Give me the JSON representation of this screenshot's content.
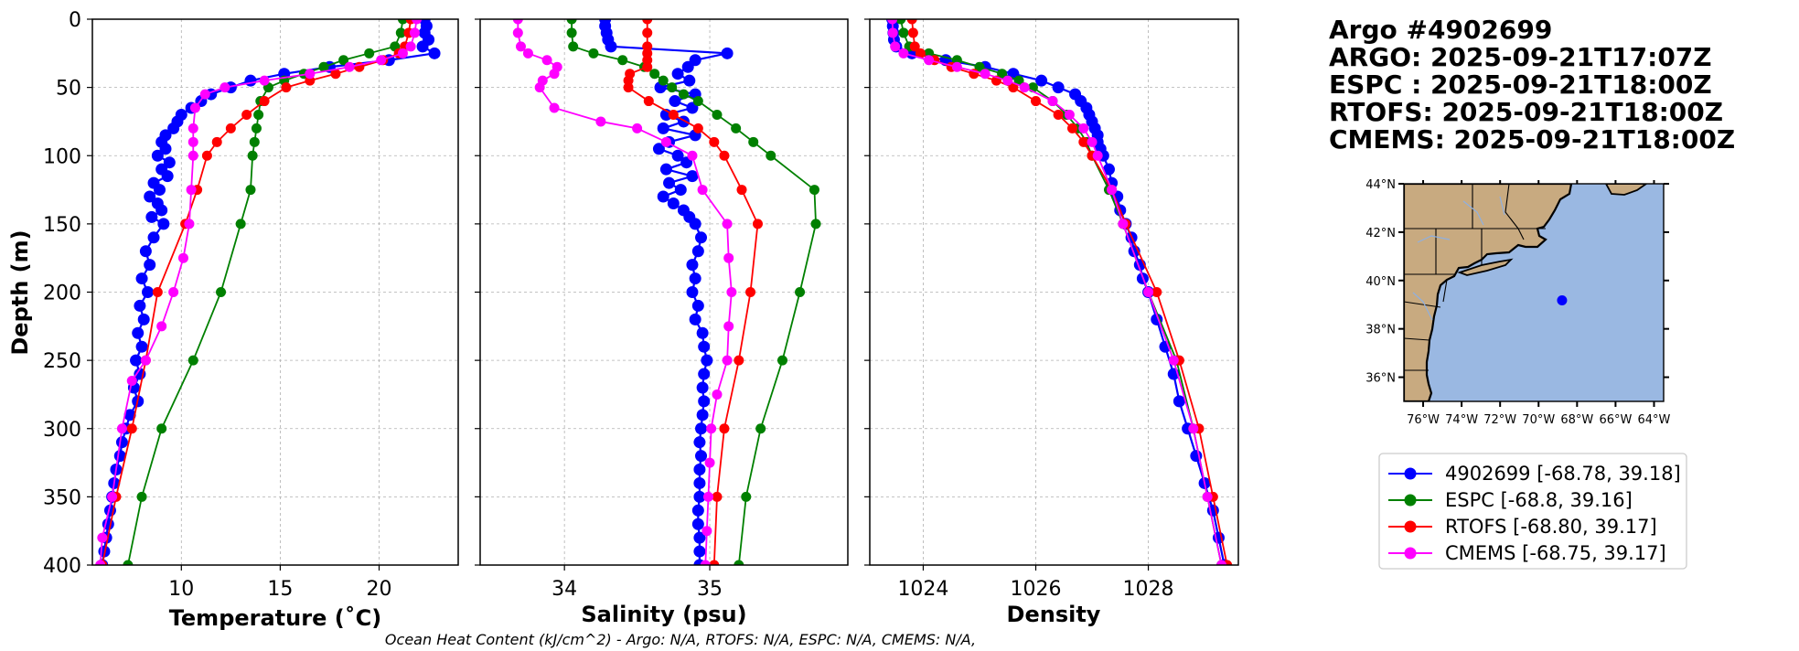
{
  "title_block": {
    "lines": [
      "Argo #4902699",
      "ARGO: 2025-09-21T17:07Z",
      "ESPC : 2025-09-21T18:00Z",
      "RTOFS: 2025-09-21T18:00Z",
      "CMEMS: 2025-09-21T18:00Z"
    ]
  },
  "footnote": "Ocean Heat Content (kJ/cm^2) - Argo: N/A,  RTOFS: N/A,  ESPC: N/A,  CMEMS: N/A,",
  "colors": {
    "argo": "#0000ff",
    "espc": "#008000",
    "rtofs": "#ff0000",
    "cmems": "#ff00ff",
    "land": "#c8aa80",
    "ocean": "#9ab8e2",
    "grid": "#b0b0b0"
  },
  "legend": [
    {
      "key": "argo",
      "label": "4902699 [-68.78, 39.18]"
    },
    {
      "key": "espc",
      "label": "ESPC [-68.8, 39.16]"
    },
    {
      "key": "rtofs",
      "label": "RTOFS [-68.80, 39.17]"
    },
    {
      "key": "cmems",
      "label": "CMEMS [-68.75, 39.17]"
    }
  ],
  "map": {
    "lon_ticks": [
      "76°W",
      "74°W",
      "72°W",
      "70°W",
      "68°W",
      "66°W",
      "64°W"
    ],
    "lon_values": [
      -76,
      -74,
      -72,
      -70,
      -68,
      -66,
      -64
    ],
    "lat_ticks": [
      "44°N",
      "42°N",
      "40°N",
      "38°N",
      "36°N"
    ],
    "lat_values": [
      44,
      42,
      40,
      38,
      36
    ],
    "lon_range": [
      -77,
      -63.5
    ],
    "lat_range": [
      35,
      44
    ],
    "float_position": {
      "lon": -68.78,
      "lat": 39.18
    }
  },
  "chart_data": [
    {
      "type": "line",
      "name": "temperature",
      "xlabel": "Temperature (˚C)",
      "ylabel": "Depth (m)",
      "xlim": [
        5.5,
        24
      ],
      "ylim": [
        400,
        0
      ],
      "xticks": [
        10,
        15,
        20
      ],
      "yticks": [
        0,
        50,
        100,
        150,
        200,
        250,
        300,
        350,
        400
      ],
      "grid": true,
      "series": [
        {
          "key": "argo",
          "name": "4902699",
          "dense": true,
          "depth": [
            0,
            5,
            10,
            15,
            20,
            25,
            30,
            35,
            40,
            45,
            50,
            55,
            60,
            65,
            70,
            75,
            80,
            85,
            90,
            95,
            100,
            105,
            110,
            115,
            120,
            125,
            130,
            135,
            140,
            145,
            150,
            160,
            170,
            180,
            190,
            200,
            210,
            220,
            230,
            240,
            250,
            260,
            270,
            280,
            290,
            300,
            310,
            320,
            330,
            340,
            350,
            360,
            370,
            380,
            390,
            400
          ],
          "values": [
            22.3,
            22.4,
            22.3,
            22.5,
            22.2,
            22.8,
            20.5,
            17.5,
            15.2,
            13.5,
            12.5,
            11.5,
            11.0,
            10.5,
            10.0,
            9.8,
            9.6,
            9.2,
            9.0,
            9.2,
            8.8,
            9.4,
            9.0,
            9.3,
            8.6,
            8.9,
            8.4,
            8.8,
            9.0,
            8.5,
            9.1,
            8.6,
            8.2,
            8.4,
            8.0,
            8.3,
            7.9,
            8.1,
            7.8,
            8.0,
            7.7,
            7.9,
            7.6,
            7.8,
            7.4,
            7.2,
            7.0,
            6.9,
            6.7,
            6.6,
            6.5,
            6.4,
            6.3,
            6.2,
            6.1,
            6.0
          ]
        },
        {
          "key": "espc",
          "name": "ESPC",
          "depth": [
            0,
            10,
            20,
            25,
            30,
            35,
            40,
            45,
            50,
            60,
            70,
            80,
            90,
            100,
            125,
            150,
            200,
            250,
            300,
            350,
            400
          ],
          "values": [
            21.2,
            21.1,
            20.8,
            19.5,
            18.2,
            17.2,
            16.2,
            15.2,
            14.4,
            14.0,
            13.9,
            13.8,
            13.7,
            13.6,
            13.5,
            13.0,
            12.0,
            10.6,
            9.0,
            8.0,
            7.3
          ]
        },
        {
          "key": "rtofs",
          "name": "RTOFS",
          "depth": [
            0,
            10,
            20,
            25,
            30,
            35,
            40,
            45,
            50,
            60,
            70,
            80,
            90,
            100,
            125,
            150,
            200,
            250,
            300,
            350,
            400
          ],
          "values": [
            21.6,
            21.5,
            21.3,
            21.0,
            20.2,
            19.0,
            17.8,
            16.5,
            15.3,
            14.2,
            13.3,
            12.5,
            11.8,
            11.3,
            10.8,
            10.2,
            8.8,
            8.2,
            7.5,
            6.7,
            6.0
          ]
        },
        {
          "key": "cmems",
          "name": "CMEMS",
          "depth": [
            0,
            10,
            20,
            25,
            30,
            35,
            40,
            45,
            50,
            55,
            65,
            80,
            90,
            100,
            125,
            150,
            175,
            200,
            225,
            250,
            265,
            300,
            350,
            380,
            400
          ],
          "values": [
            21.9,
            21.8,
            21.6,
            21.2,
            20.1,
            18.5,
            16.5,
            14.2,
            12.2,
            11.2,
            10.7,
            10.6,
            10.6,
            10.6,
            10.5,
            10.4,
            10.1,
            9.6,
            9.0,
            8.2,
            7.5,
            7.0,
            6.5,
            6.0,
            5.9
          ]
        }
      ]
    },
    {
      "type": "line",
      "name": "salinity",
      "xlabel": "Salinity (psu)",
      "xlim": [
        33.42,
        35.95
      ],
      "ylim": [
        400,
        0
      ],
      "xticks": [
        34,
        35
      ],
      "yticks": [
        0,
        50,
        100,
        150,
        200,
        250,
        300,
        350,
        400
      ],
      "grid": true,
      "series": [
        {
          "key": "argo",
          "name": "4902699",
          "dense": true,
          "depth": [
            0,
            5,
            10,
            15,
            20,
            25,
            30,
            35,
            40,
            45,
            50,
            55,
            60,
            65,
            70,
            75,
            80,
            85,
            90,
            95,
            100,
            105,
            110,
            115,
            120,
            125,
            130,
            135,
            140,
            145,
            150,
            160,
            170,
            180,
            190,
            200,
            210,
            220,
            230,
            240,
            250,
            260,
            270,
            280,
            290,
            300,
            310,
            320,
            330,
            340,
            350,
            360,
            370,
            380,
            390,
            400
          ],
          "values": [
            34.28,
            34.28,
            34.29,
            34.3,
            34.32,
            35.12,
            34.9,
            34.85,
            34.78,
            34.86,
            34.66,
            34.9,
            34.76,
            34.88,
            34.7,
            34.82,
            34.68,
            34.9,
            34.72,
            34.65,
            34.78,
            34.84,
            34.7,
            34.88,
            34.72,
            34.8,
            34.68,
            34.75,
            34.82,
            34.86,
            34.9,
            34.94,
            34.92,
            34.88,
            34.9,
            34.88,
            34.92,
            34.9,
            34.95,
            34.96,
            34.98,
            34.96,
            34.95,
            34.96,
            34.95,
            34.94,
            34.93,
            34.94,
            34.93,
            34.93,
            34.93,
            34.92,
            34.92,
            34.93,
            34.93,
            34.93
          ]
        },
        {
          "key": "espc",
          "name": "ESPC",
          "depth": [
            0,
            10,
            20,
            25,
            30,
            35,
            40,
            45,
            50,
            55,
            60,
            70,
            80,
            90,
            100,
            125,
            150,
            200,
            250,
            300,
            350,
            400
          ],
          "values": [
            34.05,
            34.05,
            34.06,
            34.2,
            34.4,
            34.55,
            34.62,
            34.68,
            34.74,
            34.82,
            34.92,
            35.05,
            35.18,
            35.3,
            35.42,
            35.72,
            35.73,
            35.62,
            35.5,
            35.35,
            35.25,
            35.2
          ]
        },
        {
          "key": "rtofs",
          "name": "RTOFS",
          "depth": [
            0,
            10,
            20,
            25,
            30,
            35,
            40,
            45,
            50,
            60,
            70,
            80,
            90,
            100,
            125,
            150,
            200,
            250,
            300,
            350,
            400
          ],
          "values": [
            34.57,
            34.57,
            34.57,
            34.57,
            34.57,
            34.57,
            34.45,
            34.44,
            34.44,
            34.58,
            34.75,
            34.92,
            35.03,
            35.1,
            35.22,
            35.33,
            35.28,
            35.2,
            35.1,
            35.05,
            35.03
          ]
        },
        {
          "key": "cmems",
          "name": "CMEMS",
          "depth": [
            0,
            10,
            20,
            25,
            30,
            35,
            40,
            45,
            50,
            65,
            75,
            80,
            90,
            100,
            125,
            150,
            175,
            200,
            225,
            250,
            275,
            300,
            325,
            350,
            375,
            400
          ],
          "values": [
            33.68,
            33.68,
            33.7,
            33.75,
            33.88,
            33.95,
            33.93,
            33.85,
            33.83,
            33.93,
            34.25,
            34.5,
            34.7,
            34.88,
            34.95,
            35.12,
            35.13,
            35.15,
            35.13,
            35.12,
            35.05,
            35.01,
            35.0,
            34.99,
            34.98,
            34.97
          ]
        }
      ]
    },
    {
      "type": "line",
      "name": "density",
      "xlabel": "Density",
      "xlim": [
        1023.05,
        1029.6
      ],
      "ylim": [
        400,
        0
      ],
      "xticks": [
        1024,
        1026,
        1028
      ],
      "yticks": [
        0,
        50,
        100,
        150,
        200,
        250,
        300,
        350,
        400
      ],
      "grid": true,
      "series": [
        {
          "key": "argo",
          "name": "4902699",
          "dense": true,
          "depth": [
            0,
            5,
            10,
            15,
            20,
            25,
            30,
            35,
            40,
            45,
            50,
            55,
            60,
            65,
            70,
            75,
            80,
            85,
            90,
            95,
            100,
            110,
            120,
            130,
            140,
            150,
            160,
            170,
            180,
            190,
            200,
            220,
            240,
            260,
            280,
            300,
            320,
            340,
            360,
            380,
            400
          ],
          "values": [
            1023.45,
            1023.46,
            1023.47,
            1023.48,
            1023.52,
            1023.8,
            1024.4,
            1025.1,
            1025.6,
            1026.1,
            1026.4,
            1026.7,
            1026.8,
            1026.9,
            1026.95,
            1027.0,
            1027.05,
            1027.1,
            1027.1,
            1027.15,
            1027.2,
            1027.3,
            1027.35,
            1027.45,
            1027.5,
            1027.6,
            1027.7,
            1027.75,
            1027.85,
            1027.9,
            1028.0,
            1028.15,
            1028.3,
            1028.45,
            1028.55,
            1028.7,
            1028.85,
            1029.0,
            1029.15,
            1029.25,
            1029.35
          ]
        },
        {
          "key": "espc",
          "name": "ESPC",
          "depth": [
            0,
            10,
            20,
            25,
            30,
            35,
            40,
            45,
            50,
            60,
            70,
            80,
            90,
            100,
            125,
            150,
            200,
            250,
            300,
            350,
            400
          ],
          "values": [
            1023.6,
            1023.65,
            1023.75,
            1024.1,
            1024.6,
            1025.0,
            1025.4,
            1025.7,
            1025.95,
            1026.3,
            1026.55,
            1026.75,
            1026.9,
            1027.0,
            1027.3,
            1027.55,
            1028.0,
            1028.5,
            1028.8,
            1029.05,
            1029.3
          ]
        },
        {
          "key": "rtofs",
          "name": "RTOFS",
          "depth": [
            0,
            10,
            20,
            25,
            30,
            35,
            40,
            45,
            50,
            60,
            70,
            80,
            90,
            100,
            125,
            150,
            200,
            250,
            300,
            350,
            400
          ],
          "values": [
            1023.8,
            1023.82,
            1023.85,
            1023.95,
            1024.2,
            1024.5,
            1024.9,
            1025.3,
            1025.6,
            1026.0,
            1026.4,
            1026.65,
            1026.85,
            1027.0,
            1027.35,
            1027.6,
            1028.15,
            1028.55,
            1028.9,
            1029.15,
            1029.4
          ]
        },
        {
          "key": "cmems",
          "name": "CMEMS",
          "depth": [
            0,
            10,
            20,
            25,
            30,
            35,
            40,
            45,
            50,
            60,
            70,
            80,
            90,
            100,
            125,
            150,
            200,
            250,
            300,
            350,
            400
          ],
          "values": [
            1023.45,
            1023.46,
            1023.5,
            1023.65,
            1024.1,
            1024.6,
            1025.1,
            1025.5,
            1025.8,
            1026.3,
            1026.6,
            1026.85,
            1027.0,
            1027.1,
            1027.35,
            1027.55,
            1028.0,
            1028.45,
            1028.8,
            1029.05,
            1029.3
          ]
        }
      ]
    }
  ]
}
